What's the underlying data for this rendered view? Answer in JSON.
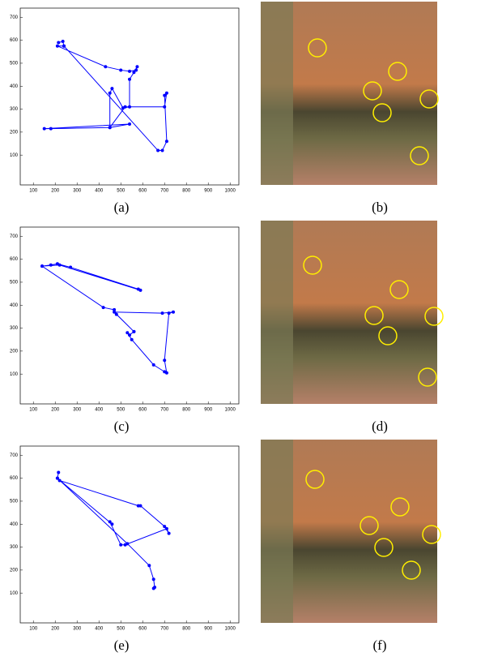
{
  "chart_data": [
    {
      "type": "line",
      "caption": "(a)",
      "color": "#0000ff",
      "x": [
        215,
        235,
        240,
        210,
        430,
        500,
        540,
        570,
        575,
        560,
        540,
        540,
        510,
        460,
        450,
        450,
        540,
        150,
        180,
        450,
        520,
        700,
        710,
        700,
        710,
        690,
        670,
        240
      ],
      "values": [
        590,
        595,
        575,
        575,
        485,
        470,
        465,
        470,
        485,
        460,
        430,
        310,
        305,
        390,
        370,
        220,
        235,
        215,
        215,
        220,
        310,
        310,
        370,
        360,
        160,
        120,
        120,
        575
      ],
      "xlim": [
        40,
        1040
      ],
      "ylim": [
        -30,
        740
      ],
      "xticks": [
        100,
        200,
        300,
        400,
        500,
        600,
        700,
        800,
        900,
        1000
      ],
      "yticks": [
        100,
        200,
        300,
        400,
        500,
        600,
        700
      ]
    },
    {
      "type": "line",
      "caption": "(c)",
      "color": "#0000ff",
      "x": [
        140,
        180,
        210,
        270,
        580,
        590,
        220,
        140,
        420,
        470,
        480,
        560,
        540,
        530,
        550,
        650,
        700,
        710,
        700,
        720,
        740,
        690,
        470,
        560
      ],
      "values": [
        570,
        575,
        580,
        565,
        470,
        465,
        575,
        570,
        390,
        380,
        360,
        285,
        270,
        280,
        250,
        140,
        110,
        105,
        160,
        365,
        370,
        365,
        370,
        285
      ],
      "xlim": [
        40,
        1040
      ],
      "ylim": [
        -30,
        740
      ],
      "xticks": [
        100,
        200,
        300,
        400,
        500,
        600,
        700,
        800,
        900,
        1000
      ],
      "yticks": [
        100,
        200,
        300,
        400,
        500,
        600,
        700
      ]
    },
    {
      "type": "line",
      "caption": "(e)",
      "color": "#0000ff",
      "x": [
        215,
        210,
        220,
        580,
        590,
        700,
        720,
        710,
        520,
        500,
        450,
        460,
        210,
        530,
        630,
        650,
        655,
        650
      ],
      "values": [
        625,
        600,
        590,
        480,
        480,
        390,
        360,
        380,
        310,
        310,
        410,
        400,
        600,
        315,
        220,
        160,
        125,
        120
      ],
      "xlim": [
        40,
        1040
      ],
      "ylim": [
        -30,
        740
      ],
      "xticks": [
        100,
        200,
        300,
        400,
        500,
        600,
        700,
        800,
        900,
        1000
      ],
      "yticks": [
        100,
        200,
        300,
        400,
        500,
        600,
        700
      ]
    }
  ],
  "images": [
    {
      "caption": "(b)"
    },
    {
      "caption": "(d)"
    },
    {
      "caption": "(f)"
    }
  ]
}
